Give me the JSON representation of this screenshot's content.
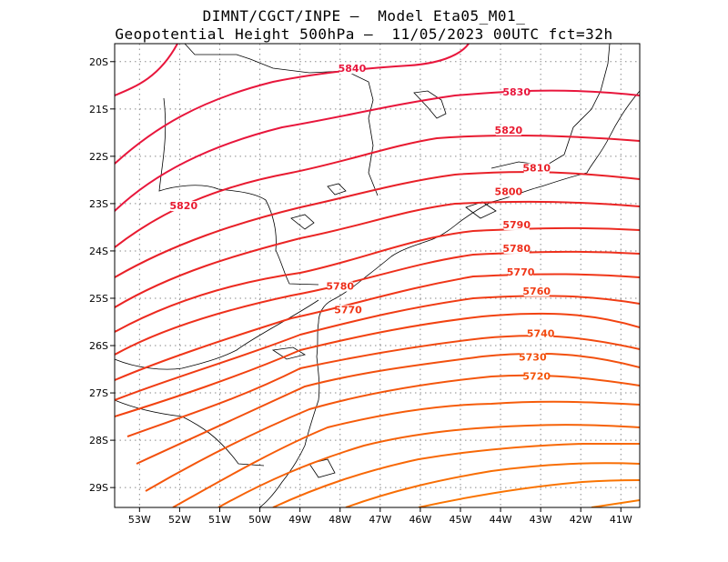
{
  "title_line1": "DIMNT/CGCT/INPE –  Model Eta05_M01_",
  "title_line2": "Geopotential Height 500hPa –  11/05/2023 00UTC fct=32h",
  "x_ticks": [
    "53W",
    "52W",
    "51W",
    "50W",
    "49W",
    "48W",
    "47W",
    "46W",
    "45W",
    "44W",
    "43W",
    "42W",
    "41W"
  ],
  "y_ticks": [
    "20S",
    "21S",
    "22S",
    "23S",
    "24S",
    "25S",
    "26S",
    "27S",
    "28S",
    "29S"
  ],
  "contour_labels": [
    {
      "text": "5840",
      "lon": -47.7,
      "lat": -20.2,
      "color": "#e8163c"
    },
    {
      "text": "5830",
      "lon": -43.6,
      "lat": -20.7,
      "color": "#e8163c"
    },
    {
      "text": "5820",
      "lon": -43.8,
      "lat": -21.5,
      "color": "#e81a30"
    },
    {
      "text": "5820",
      "lon": -51.9,
      "lat": -23.1,
      "color": "#e81a30"
    },
    {
      "text": "5810",
      "lon": -43.1,
      "lat": -22.3,
      "color": "#e82028"
    },
    {
      "text": "5800",
      "lon": -43.8,
      "lat": -22.8,
      "color": "#ea2424"
    },
    {
      "text": "5790",
      "lon": -43.6,
      "lat": -23.5,
      "color": "#ec2a20"
    },
    {
      "text": "5780",
      "lon": -43.6,
      "lat": -24.0,
      "color": "#ee301c"
    },
    {
      "text": "5780",
      "lon": -48.0,
      "lat": -24.8,
      "color": "#ee301c"
    },
    {
      "text": "5770",
      "lon": -43.5,
      "lat": -24.5,
      "color": "#f03618"
    },
    {
      "text": "5770",
      "lon": -47.8,
      "lat": -25.3,
      "color": "#f03618"
    },
    {
      "text": "5760",
      "lon": -43.1,
      "lat": -24.9,
      "color": "#f03c14"
    },
    {
      "text": "5740",
      "lon": -43.0,
      "lat": -25.8,
      "color": "#f24a10"
    },
    {
      "text": "5730",
      "lon": -43.2,
      "lat": -26.3,
      "color": "#f2500e"
    },
    {
      "text": "5720",
      "lon": -43.1,
      "lat": -26.7,
      "color": "#f4560c"
    }
  ],
  "colors": {
    "frame": "#000000",
    "grid": "#8a8a8a",
    "coast": "#000000"
  }
}
